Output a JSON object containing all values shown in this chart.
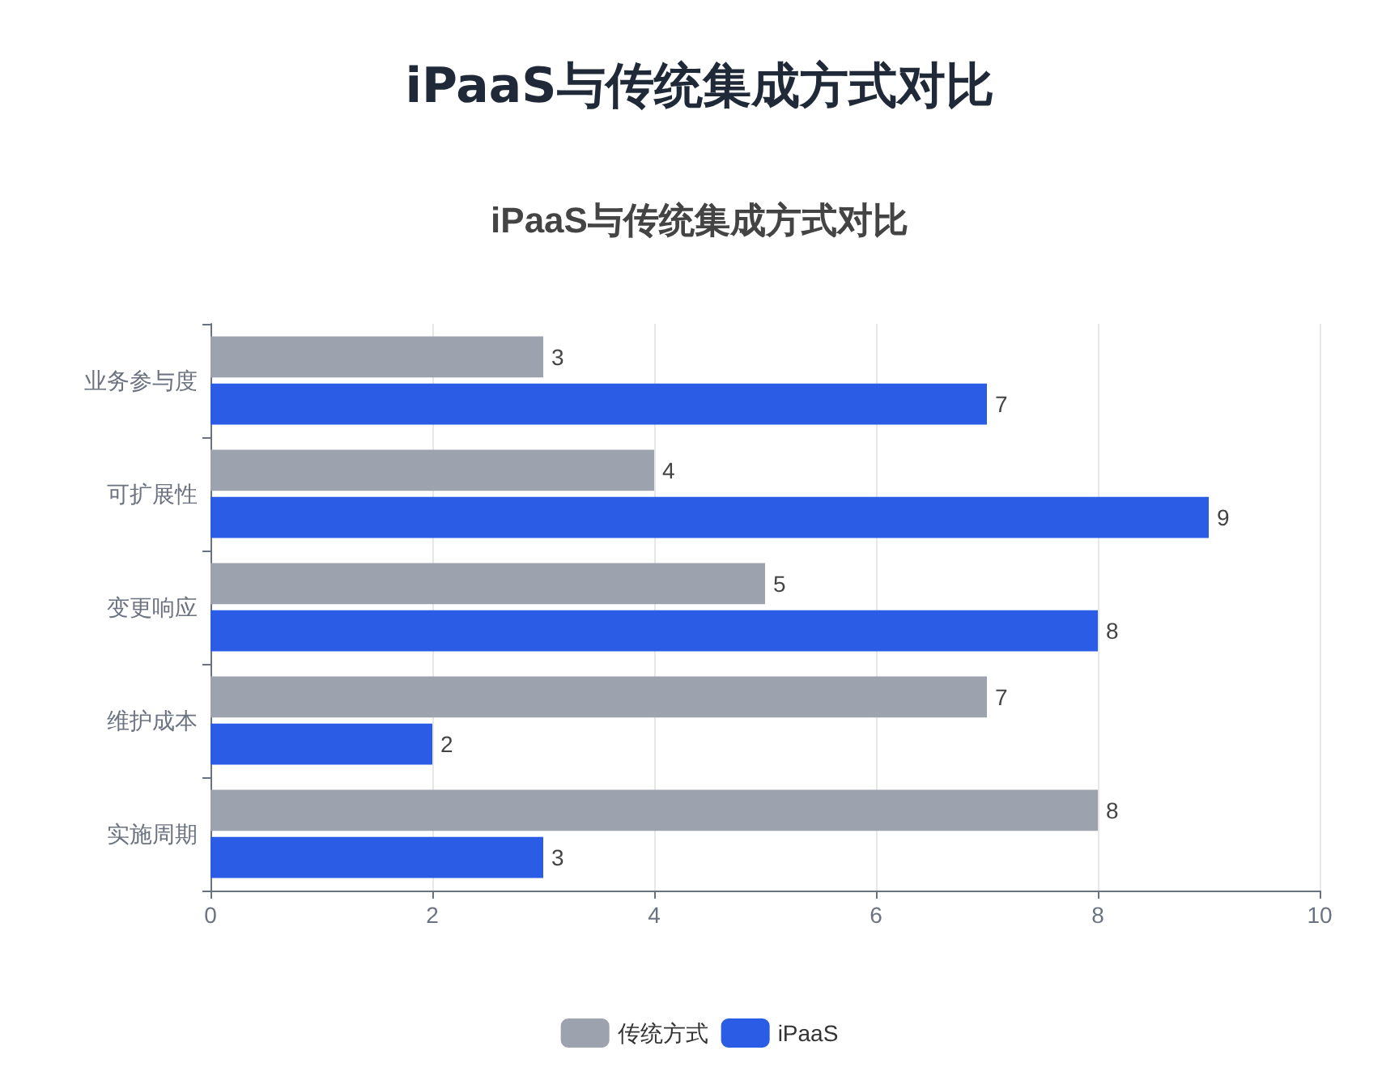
{
  "chart_data": {
    "type": "bar",
    "orientation": "horizontal",
    "title": "iPaaS与传统集成方式对比",
    "categories": [
      "业务参与度",
      "可扩展性",
      "变更响应",
      "维护成本",
      "实施周期"
    ],
    "series": [
      {
        "name": "传统方式",
        "color": "#9ca3af",
        "values": [
          3,
          4,
          5,
          7,
          8
        ]
      },
      {
        "name": "iPaaS",
        "color": "#2b5ce6",
        "values": [
          7,
          9,
          8,
          2,
          3
        ]
      }
    ],
    "xlim": [
      0,
      10
    ],
    "xticks": [
      0,
      2,
      4,
      6,
      8,
      10
    ],
    "grid": "x",
    "legend": "bottom",
    "data_labels": true
  }
}
